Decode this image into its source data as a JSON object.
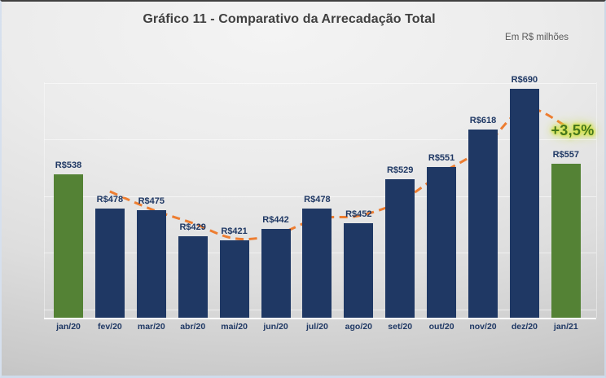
{
  "header": {
    "title": "Gráfico 11 - Comparativo da Arrecadação Total",
    "subtitle": "Em R$ milhões"
  },
  "chart_data": {
    "type": "bar",
    "title": "Gráfico 11 - Comparativo da Arrecadação Total",
    "units_note": "Em R$ milhões",
    "categories": [
      "jan/20",
      "fev/20",
      "mar/20",
      "abr/20",
      "mai/20",
      "jun/20",
      "jul/20",
      "ago/20",
      "set/20",
      "out/20",
      "nov/20",
      "dez/20",
      "jan/21"
    ],
    "values": [
      538,
      478,
      475,
      429,
      421,
      442,
      478,
      452,
      529,
      551,
      618,
      690,
      557
    ],
    "labels": [
      "R$538",
      "R$478",
      "R$475",
      "R$429",
      "R$421",
      "R$442",
      "R$478",
      "R$452",
      "R$529",
      "R$551",
      "R$618",
      "R$690",
      "R$557"
    ],
    "highlight_indices": [
      0,
      12
    ],
    "ylim": [
      285,
      725
    ],
    "gridline_values": [
      300,
      400,
      500,
      600,
      700
    ],
    "grid": "horizontal faint white lines, y-axis hidden",
    "legend": "none",
    "trendline": {
      "type": "moving-average",
      "period": 2,
      "style": "dashed",
      "color": "#ED7D31",
      "values": [
        508,
        476.5,
        452,
        425,
        431.5,
        460,
        465,
        490.5,
        540,
        584.5,
        654,
        623.5
      ]
    },
    "annotation": {
      "text": "+3,5%",
      "color": "#44761C",
      "glow": "#D3E24C"
    },
    "colors": {
      "bar": "#1F3864",
      "bar_highlight": "#548235",
      "data_label": "#1F3864",
      "axis_label": "#1F3864",
      "title": "#404040",
      "subtitle": "#595959"
    }
  }
}
